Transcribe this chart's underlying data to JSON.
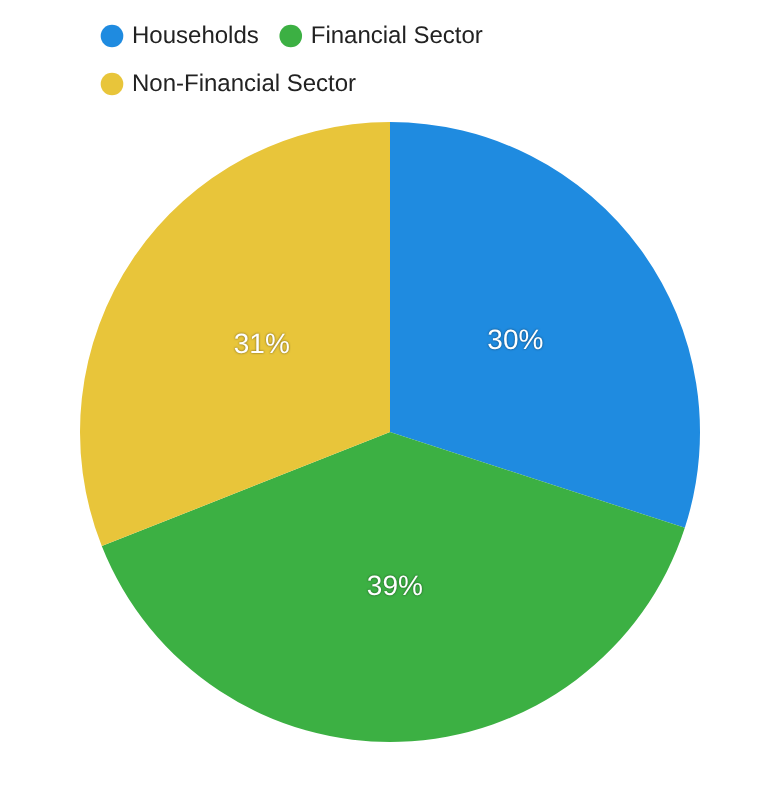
{
  "chart_data": {
    "type": "pie",
    "categories": [
      "Households",
      "Financial Sector",
      "Non-Financial Sector"
    ],
    "values": [
      30,
      39,
      31
    ],
    "colors": [
      "#1f8be0",
      "#3cb043",
      "#e8c53a"
    ],
    "value_labels": [
      "30%",
      "39%",
      "31%"
    ],
    "legend": "top left"
  }
}
